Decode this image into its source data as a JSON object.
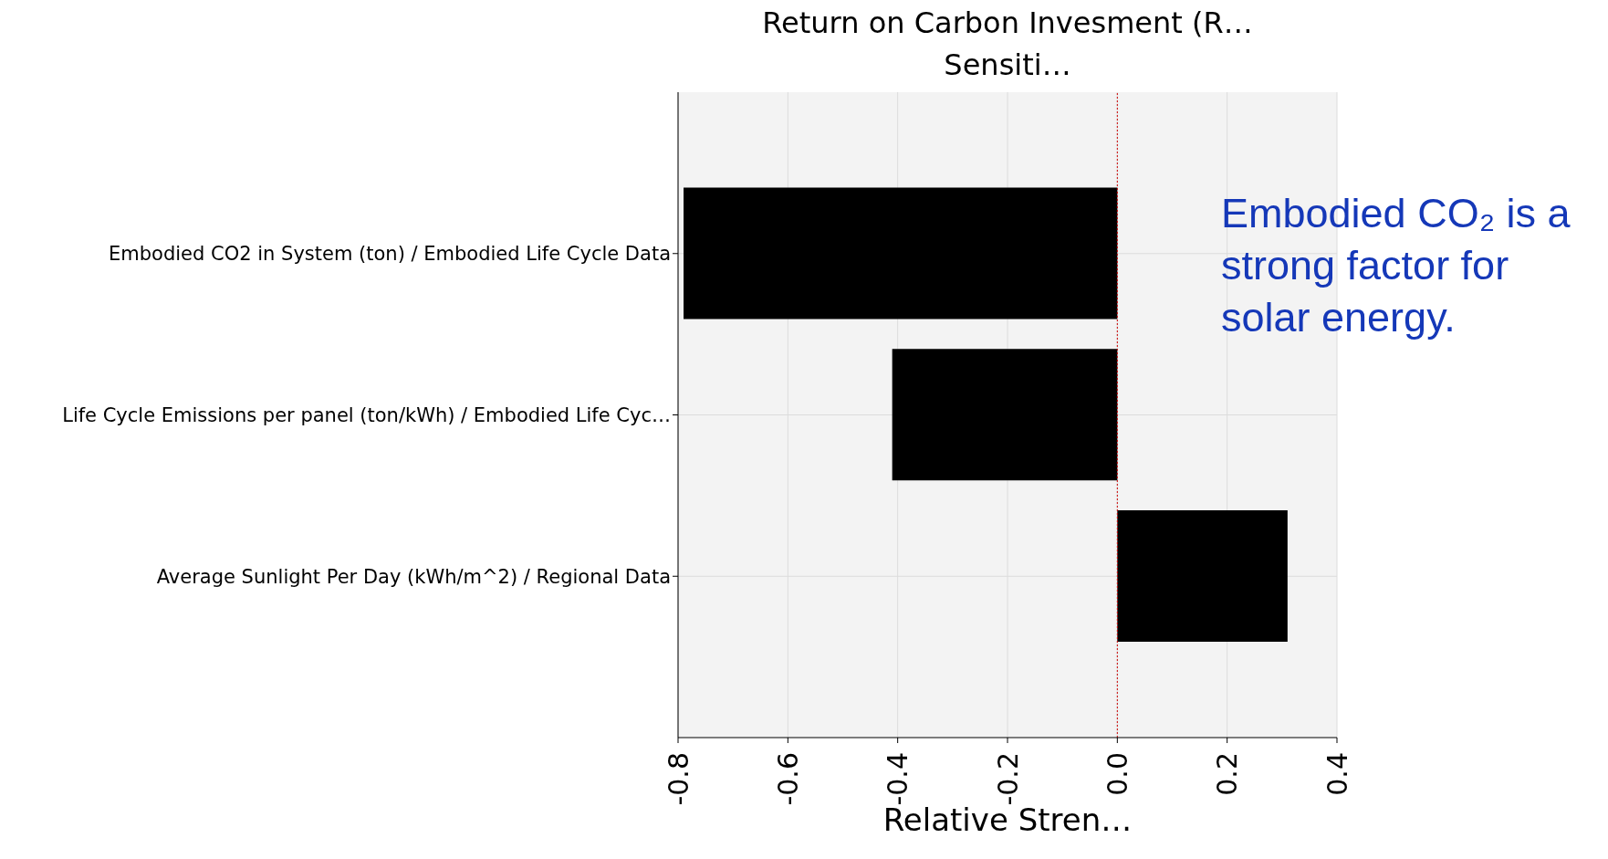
{
  "chart_data": {
    "type": "bar",
    "orientation": "horizontal",
    "title": "Return on Carbon Invesment (R…\nSensiti…",
    "xlabel": "Relative Stren…",
    "categories": [
      "Embodied CO2 in System (ton) / Embodied Life Cycle Data",
      "Life Cycle Emissions per panel (ton/kWh) / Embodied Life Cyc…",
      "Average Sunlight Per Day (kWh/m^2) / Regional Data"
    ],
    "values": [
      -0.79,
      -0.41,
      0.31
    ],
    "color": "#000000",
    "xlim": [
      -0.8,
      0.4
    ],
    "xticks": [
      {
        "value": -0.8,
        "label": "-0.8"
      },
      {
        "value": -0.6,
        "label": "-0.6"
      },
      {
        "value": -0.4,
        "label": "-0.4"
      },
      {
        "value": -0.2,
        "label": "-0.2"
      },
      {
        "value": 0,
        "label": "0.0"
      },
      {
        "value": 0.2,
        "label": "0.2"
      },
      {
        "value": 0.4,
        "label": "0.4"
      }
    ],
    "ref_lines": [
      {
        "axis": "x",
        "value": 0,
        "color": "#cc0000",
        "line_style": "dotted"
      }
    ],
    "annotations": [
      "Embodied CO₂ is a\nstrong factor for\nsolar energy."
    ],
    "grid": true
  }
}
